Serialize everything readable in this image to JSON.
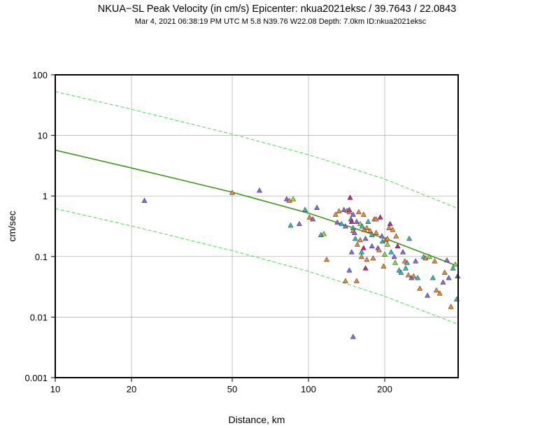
{
  "chart_data": {
    "type": "scatter",
    "title": "NKUA−SL Peak Velocity (in cm/s) Epicenter: nkua2021eksc / 39.7643 / 22.0843",
    "subtitle": "Mar  4, 2021 06:38:19 PM UTC    M 5.8    N39.76 W22.08    Depth: 7.0km    ID:nkua2021eksc",
    "xlabel": "Distance, km",
    "ylabel": "cm/sec",
    "x_scale": "log",
    "y_scale": "log",
    "xlim": [
      10,
      390
    ],
    "ylim": [
      0.001,
      100
    ],
    "x_ticks": [
      10,
      20,
      50,
      100,
      200
    ],
    "x_tick_labels": [
      "10",
      "20",
      "50",
      "100",
      "200"
    ],
    "y_ticks": [
      0.001,
      0.01,
      0.1,
      1,
      10,
      100
    ],
    "y_tick_labels": [
      "0.001",
      "0.01",
      "0.1",
      "1",
      "10",
      "100"
    ],
    "grid": true,
    "curves": [
      {
        "role": "prediction",
        "color": "#3a9a1a",
        "style": "solid",
        "points": [
          [
            10,
            5.7
          ],
          [
            20,
            2.9
          ],
          [
            50,
            1.15
          ],
          [
            100,
            0.52
          ],
          [
            200,
            0.2
          ],
          [
            390,
            0.069
          ]
        ]
      },
      {
        "role": "prediction-upper",
        "color": "#44dd44",
        "style": "dashed",
        "points": [
          [
            10,
            53
          ],
          [
            20,
            27
          ],
          [
            50,
            10.5
          ],
          [
            100,
            4.8
          ],
          [
            200,
            1.9
          ],
          [
            390,
            0.62
          ]
        ]
      },
      {
        "role": "prediction-lower",
        "color": "#44dd44",
        "style": "dashed",
        "points": [
          [
            10,
            0.62
          ],
          [
            20,
            0.32
          ],
          [
            50,
            0.125
          ],
          [
            100,
            0.057
          ],
          [
            200,
            0.022
          ],
          [
            390,
            0.0076
          ]
        ]
      }
    ],
    "stations": [
      [
        22.5,
        0.85,
        "#8866ee"
      ],
      [
        50,
        1.15,
        "#ee8833"
      ],
      [
        64,
        1.25,
        "#8866ee"
      ],
      [
        82,
        0.9,
        "#8866ee"
      ],
      [
        84,
        0.85,
        "#ee8833"
      ],
      [
        87,
        0.9,
        "#88dd44"
      ],
      [
        85,
        0.33,
        "#33bbbb"
      ],
      [
        92,
        0.35,
        "#8866ee"
      ],
      [
        97,
        0.6,
        "#33bbbb"
      ],
      [
        101,
        0.45,
        "#ee8833"
      ],
      [
        104,
        0.42,
        "#8866ee"
      ],
      [
        108,
        0.65,
        "#8866ee"
      ],
      [
        112,
        0.23,
        "#33bbbb"
      ],
      [
        115,
        0.24,
        "#88dd44"
      ],
      [
        118,
        0.09,
        "#ee8833"
      ],
      [
        128,
        0.5,
        "#ee8833"
      ],
      [
        132,
        0.57,
        "#ee8833"
      ],
      [
        135,
        0.35,
        "#33bbbb"
      ],
      [
        138,
        0.6,
        "#8866ee"
      ],
      [
        140,
        0.32,
        "#8866ee"
      ],
      [
        142,
        0.58,
        "#ee8833"
      ],
      [
        145,
        0.55,
        "#ee8833"
      ],
      [
        145,
        0.6,
        "#bb44bb"
      ],
      [
        146,
        0.95,
        "#cc2288"
      ],
      [
        147,
        0.42,
        "#8866ee"
      ],
      [
        148,
        0.38,
        "#cc2288"
      ],
      [
        148,
        0.12,
        "#8866ee"
      ],
      [
        150,
        0.3,
        "#33bbbb"
      ],
      [
        150,
        0.27,
        "#ee8833"
      ],
      [
        152,
        0.25,
        "#8866ee"
      ],
      [
        153,
        0.2,
        "#33bbbb"
      ],
      [
        155,
        0.38,
        "#8866ee"
      ],
      [
        156,
        0.16,
        "#ee8833"
      ],
      [
        158,
        0.55,
        "#ee8833"
      ],
      [
        160,
        0.35,
        "#88dd44"
      ],
      [
        160,
        0.19,
        "#ee8833"
      ],
      [
        162,
        0.12,
        "#33bbbb"
      ],
      [
        162,
        0.1,
        "#ee8833"
      ],
      [
        163,
        0.32,
        "#33bbbb"
      ],
      [
        165,
        0.5,
        "#ee8833"
      ],
      [
        166,
        0.28,
        "#ee8833"
      ],
      [
        168,
        0.2,
        "#8866ee"
      ],
      [
        168,
        0.065,
        "#cc2288"
      ],
      [
        170,
        0.09,
        "#ee8833"
      ],
      [
        172,
        0.38,
        "#33bbbb"
      ],
      [
        175,
        0.27,
        "#ee8833"
      ],
      [
        178,
        0.15,
        "#8866ee"
      ],
      [
        180,
        0.095,
        "#ee8833"
      ],
      [
        182,
        0.42,
        "#ee8833"
      ],
      [
        185,
        0.25,
        "#ee8833"
      ],
      [
        188,
        0.14,
        "#8866ee"
      ],
      [
        190,
        0.13,
        "#ee8833"
      ],
      [
        192,
        0.45,
        "#cc2288"
      ],
      [
        195,
        0.22,
        "#8866ee"
      ],
      [
        196,
        0.18,
        "#33bbbb"
      ],
      [
        198,
        0.07,
        "#ee8833"
      ],
      [
        200,
        0.11,
        "#88dd44"
      ],
      [
        202,
        0.19,
        "#ee8833"
      ],
      [
        205,
        0.16,
        "#88dd44"
      ],
      [
        208,
        0.3,
        "#ee8833"
      ],
      [
        210,
        0.35,
        "#cc2288"
      ],
      [
        212,
        0.12,
        "#33bbbb"
      ],
      [
        215,
        0.28,
        "#ee8833"
      ],
      [
        218,
        0.1,
        "#8866ee"
      ],
      [
        220,
        0.08,
        "#88dd44"
      ],
      [
        222,
        0.22,
        "#ee8833"
      ],
      [
        225,
        0.15,
        "#cc2288"
      ],
      [
        228,
        0.06,
        "#33bbbb"
      ],
      [
        232,
        0.055,
        "#33bbbb"
      ],
      [
        236,
        0.12,
        "#8866ee"
      ],
      [
        240,
        0.085,
        "#ee8833"
      ],
      [
        242,
        0.065,
        "#33bbbb"
      ],
      [
        245,
        0.08,
        "#33bbbb"
      ],
      [
        248,
        0.05,
        "#ee8833"
      ],
      [
        250,
        0.2,
        "#33bbbb"
      ],
      [
        255,
        0.045,
        "#8866ee"
      ],
      [
        260,
        0.048,
        "#ee8833"
      ],
      [
        265,
        0.085,
        "#8866ee"
      ],
      [
        270,
        0.045,
        "#33bbbb"
      ],
      [
        275,
        0.03,
        "#ee8833"
      ],
      [
        285,
        0.1,
        "#33bbbb"
      ],
      [
        290,
        0.095,
        "#ee8833"
      ],
      [
        295,
        0.023,
        "#8866ee"
      ],
      [
        300,
        0.1,
        "#88dd44"
      ],
      [
        310,
        0.045,
        "#33bbbb"
      ],
      [
        315,
        0.085,
        "#ee8833"
      ],
      [
        320,
        0.028,
        "#ee8833"
      ],
      [
        330,
        0.025,
        "#ee8833"
      ],
      [
        340,
        0.038,
        "#8866ee"
      ],
      [
        345,
        0.055,
        "#ee8833"
      ],
      [
        352,
        0.088,
        "#8866ee"
      ],
      [
        358,
        0.045,
        "#8866ee"
      ],
      [
        365,
        0.015,
        "#ee8833"
      ],
      [
        372,
        0.065,
        "#33bbbb"
      ],
      [
        380,
        0.075,
        "#88dd44"
      ],
      [
        385,
        0.02,
        "#33bbbb"
      ],
      [
        388,
        0.048,
        "#8866ee"
      ],
      [
        150,
        0.0048,
        "#8866ee"
      ],
      [
        145,
        0.06,
        "#8866ee"
      ],
      [
        140,
        0.04,
        "#ee8833"
      ],
      [
        155,
        0.04,
        "#ee8833"
      ],
      [
        130,
        0.37,
        "#8866ee"
      ],
      [
        170,
        0.3,
        "#ee8833"
      ],
      [
        185,
        0.42,
        "#ee8833"
      ],
      [
        205,
        0.2,
        "#ee8833"
      ],
      [
        150,
        0.5,
        "#8866ee"
      ],
      [
        178,
        0.23,
        "#33bbbb"
      ],
      [
        165,
        0.14,
        "#cc2288"
      ]
    ]
  }
}
